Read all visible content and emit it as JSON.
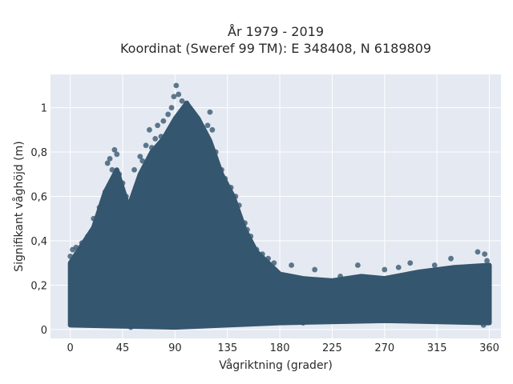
{
  "chart_data": {
    "type": "scatter",
    "title": "År 1979 - 2019",
    "subtitle": "Koordinat (Sweref 99 TM): E 348408, N 6189809",
    "xlabel": "Vågriktning (grader)",
    "ylabel": "Signifikant våghöjd (m)",
    "xlim": [
      -17,
      370
    ],
    "ylim": [
      -0.04,
      1.15
    ],
    "xticks": [
      0,
      45,
      90,
      135,
      180,
      225,
      270,
      315,
      360
    ],
    "xtick_labels": [
      "0",
      "45",
      "90",
      "135",
      "180",
      "225",
      "270",
      "315",
      "360"
    ],
    "yticks": [
      0,
      0.2,
      0.4,
      0.6,
      0.8,
      1
    ],
    "ytick_labels": [
      "0",
      "0,2",
      "0,4",
      "0,6",
      "0,8",
      "1"
    ],
    "grid": true,
    "legend": "none",
    "marker_color": "#34566e",
    "background_color": "#e5e9f1",
    "envelope": {
      "description_points": [
        [
          0,
          0.3
        ],
        [
          10,
          0.38
        ],
        [
          20,
          0.46
        ],
        [
          30,
          0.62
        ],
        [
          40,
          0.72
        ],
        [
          50,
          0.55
        ],
        [
          60,
          0.7
        ],
        [
          70,
          0.8
        ],
        [
          80,
          0.86
        ],
        [
          90,
          0.95
        ],
        [
          100,
          1.02
        ],
        [
          110,
          0.95
        ],
        [
          120,
          0.85
        ],
        [
          130,
          0.7
        ],
        [
          140,
          0.6
        ],
        [
          150,
          0.45
        ],
        [
          160,
          0.35
        ],
        [
          170,
          0.3
        ],
        [
          180,
          0.25
        ],
        [
          200,
          0.23
        ],
        [
          225,
          0.22
        ],
        [
          250,
          0.24
        ],
        [
          270,
          0.23
        ],
        [
          300,
          0.26
        ],
        [
          330,
          0.28
        ],
        [
          360,
          0.29
        ]
      ],
      "lower_points": [
        [
          0,
          0.02
        ],
        [
          90,
          0.01
        ],
        [
          180,
          0.03
        ],
        [
          270,
          0.04
        ],
        [
          360,
          0.03
        ]
      ]
    },
    "points": [
      [
        0,
        0.33
      ],
      [
        2,
        0.36
      ],
      [
        5,
        0.37
      ],
      [
        10,
        0.39
      ],
      [
        15,
        0.42
      ],
      [
        20,
        0.5
      ],
      [
        25,
        0.55
      ],
      [
        30,
        0.62
      ],
      [
        32,
        0.75
      ],
      [
        34,
        0.77
      ],
      [
        36,
        0.72
      ],
      [
        38,
        0.81
      ],
      [
        40,
        0.79
      ],
      [
        42,
        0.7
      ],
      [
        45,
        0.66
      ],
      [
        48,
        0.6
      ],
      [
        55,
        0.72
      ],
      [
        60,
        0.78
      ],
      [
        62,
        0.76
      ],
      [
        65,
        0.83
      ],
      [
        68,
        0.9
      ],
      [
        70,
        0.82
      ],
      [
        73,
        0.86
      ],
      [
        75,
        0.92
      ],
      [
        78,
        0.87
      ],
      [
        80,
        0.94
      ],
      [
        84,
        0.97
      ],
      [
        87,
        1.0
      ],
      [
        89,
        1.05
      ],
      [
        91,
        1.1
      ],
      [
        93,
        1.06
      ],
      [
        96,
        1.03
      ],
      [
        98,
        0.98
      ],
      [
        100,
        1.02
      ],
      [
        103,
        0.99
      ],
      [
        105,
        0.93
      ],
      [
        110,
        0.9
      ],
      [
        115,
        0.87
      ],
      [
        118,
        0.92
      ],
      [
        120,
        0.98
      ],
      [
        122,
        0.9
      ],
      [
        125,
        0.8
      ],
      [
        130,
        0.72
      ],
      [
        133,
        0.68
      ],
      [
        138,
        0.64
      ],
      [
        142,
        0.6
      ],
      [
        145,
        0.56
      ],
      [
        150,
        0.48
      ],
      [
        152,
        0.45
      ],
      [
        155,
        0.42
      ],
      [
        160,
        0.36
      ],
      [
        165,
        0.34
      ],
      [
        170,
        0.32
      ],
      [
        175,
        0.3
      ],
      [
        190,
        0.29
      ],
      [
        210,
        0.27
      ],
      [
        232,
        0.24
      ],
      [
        247,
        0.29
      ],
      [
        270,
        0.27
      ],
      [
        282,
        0.28
      ],
      [
        292,
        0.3
      ],
      [
        313,
        0.29
      ],
      [
        327,
        0.32
      ],
      [
        350,
        0.35
      ],
      [
        356,
        0.34
      ],
      [
        358,
        0.31
      ],
      [
        140,
        0.05
      ],
      [
        200,
        0.03
      ],
      [
        355,
        0.02
      ],
      [
        52,
        0.01
      ]
    ]
  }
}
